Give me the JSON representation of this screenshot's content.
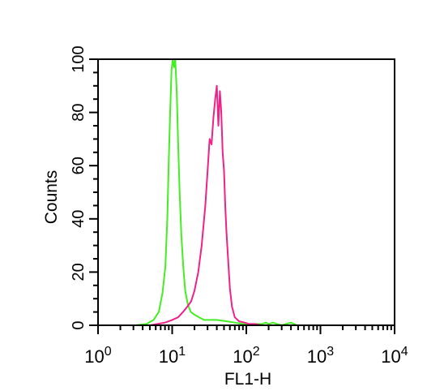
{
  "chart_data": {
    "type": "line",
    "title": "",
    "xlabel": "FL1-H",
    "ylabel": "Counts",
    "x_scale": "log",
    "xlim": [
      1,
      10000
    ],
    "ylim": [
      0,
      100
    ],
    "grid": false,
    "legend": "none",
    "x_ticks": [
      {
        "base": "10",
        "exp": "0",
        "value": 1
      },
      {
        "base": "10",
        "exp": "1",
        "value": 10
      },
      {
        "base": "10",
        "exp": "2",
        "value": 100
      },
      {
        "base": "10",
        "exp": "3",
        "value": 1000
      },
      {
        "base": "10",
        "exp": "4",
        "value": 10000
      }
    ],
    "y_ticks": [
      {
        "label": "0",
        "value": 0
      },
      {
        "label": "20",
        "value": 20
      },
      {
        "label": "40",
        "value": 40
      },
      {
        "label": "60",
        "value": 60
      },
      {
        "label": "80",
        "value": 80
      },
      {
        "label": "100",
        "value": 100
      }
    ],
    "series": [
      {
        "color": "#44ee22",
        "x": [
          1,
          3.2,
          4.5,
          5.6,
          6.6,
          7.4,
          8.1,
          8.6,
          9.0,
          9.4,
          9.8,
          10.2,
          10.6,
          11.0,
          11.5,
          12.0,
          12.6,
          13.3,
          14.1,
          15.0,
          16.2,
          17.8,
          20.0,
          23.0,
          27.0,
          33.0,
          40.0,
          55.0,
          70.0,
          90.0,
          120.0,
          160.0,
          185.0,
          200.0,
          230.0,
          260.0,
          300.0,
          400.0,
          440.0,
          480.0,
          600.0,
          1000.0,
          10000.0
        ],
        "y": [
          0,
          0,
          0.5,
          2,
          5,
          12,
          22,
          40,
          62,
          80,
          96,
          100,
          97,
          100,
          88,
          70,
          50,
          34,
          22,
          13,
          8,
          5,
          4,
          3,
          2,
          2,
          2,
          1.5,
          1,
          0.5,
          0.5,
          0.5,
          1,
          0.5,
          1,
          0.5,
          0,
          1,
          0.5,
          0,
          0,
          0,
          0
        ]
      },
      {
        "color": "#ee2288",
        "x": [
          1,
          5.0,
          8.0,
          10.0,
          12.0,
          14.0,
          16.0,
          18.0,
          20.0,
          22.5,
          25.0,
          28.0,
          30.0,
          32.0,
          34.0,
          36.0,
          38.0,
          40.0,
          42.0,
          44.0,
          46.0,
          48.0,
          50.0,
          52.0,
          54.0,
          57.0,
          60.0,
          64.0,
          70.0,
          80.0,
          95.0,
          110.0,
          130.0,
          160.0,
          200.0,
          10000.0
        ],
        "y": [
          0,
          0,
          1,
          2,
          3,
          5,
          7,
          9,
          13,
          20,
          30,
          45,
          58,
          70,
          68,
          78,
          85,
          90,
          75,
          88,
          80,
          65,
          58,
          45,
          35,
          24,
          14,
          7,
          3,
          1.5,
          1,
          0.5,
          0.5,
          0,
          0,
          0
        ]
      }
    ]
  }
}
